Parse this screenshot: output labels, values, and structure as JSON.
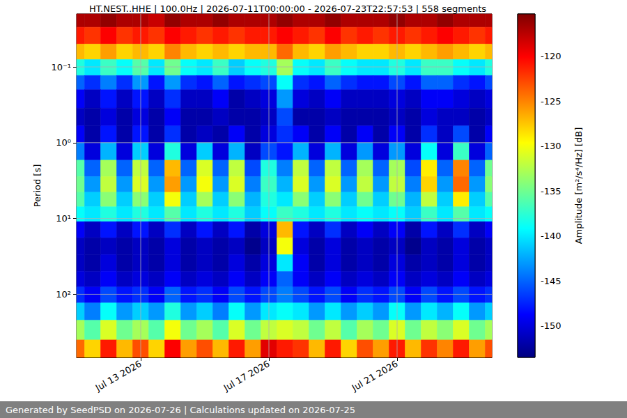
{
  "chart_data": {
    "type": "heatmap",
    "title": "HT.NEST..HHE | 100.0Hz | 2026-07-11T00:00:00 - 2026-07-23T22:57:53 | 558 segments",
    "footer": "Generated by SeedPSD on 2026-07-26 | Calculations updated on 2026-07-25",
    "y_label": "Period [s]",
    "colorbar_label": "Amplitude [m²/s⁴/Hz] [dB]",
    "log": "y",
    "grid": true,
    "xlim": [
      "2026-07-11T00:00:00",
      "2026-07-23T22:57:53"
    ],
    "xticks": [
      {
        "value": "2026-07-13T00:00:00",
        "label": "Jul 13 2026"
      },
      {
        "value": "2026-07-17T00:00:00",
        "label": "Jul 17 2026"
      },
      {
        "value": "2026-07-21T00:00:00",
        "label": "Jul 21 2026"
      }
    ],
    "ylim": [
      0.02,
      680
    ],
    "yticks": [
      {
        "value": 0.1,
        "label": "10⁻¹"
      },
      {
        "value": 1,
        "label": "10⁰"
      },
      {
        "value": 10,
        "label": "10¹"
      },
      {
        "value": 100,
        "label": "10²"
      }
    ],
    "colorbar_range": [
      -153.5,
      -115.3
    ],
    "colorbar_ticks": [
      -150,
      -145,
      -140,
      -135,
      -130,
      -125,
      -120
    ],
    "time_edges": [
      "2026-07-11T00:00:00",
      "2026-07-11T06:00:00",
      "2026-07-11T18:00:00",
      "2026-07-12T06:00:00",
      "2026-07-12T18:00:00",
      "2026-07-13T06:00:00",
      "2026-07-13T18:00:00",
      "2026-07-14T06:00:00",
      "2026-07-14T18:00:00",
      "2026-07-15T06:00:00",
      "2026-07-15T18:00:00",
      "2026-07-16T06:00:00",
      "2026-07-16T18:00:00",
      "2026-07-17T06:00:00",
      "2026-07-17T18:00:00",
      "2026-07-18T06:00:00",
      "2026-07-18T18:00:00",
      "2026-07-19T06:00:00",
      "2026-07-19T18:00:00",
      "2026-07-20T06:00:00",
      "2026-07-20T18:00:00",
      "2026-07-21T06:00:00",
      "2026-07-21T18:00:00",
      "2026-07-22T06:00:00",
      "2026-07-22T18:00:00",
      "2026-07-23T06:00:00",
      "2026-07-23T18:00:00",
      "2026-07-23T22:57:53"
    ],
    "period_edges": [
      0.02,
      0.03,
      0.05,
      0.08,
      0.13,
      0.2,
      0.35,
      0.6,
      1,
      1.7,
      2.8,
      4.5,
      7,
      11,
      18,
      30,
      50,
      80,
      130,
      220,
      400,
      680
    ],
    "cells": [
      [
        -117,
        -117,
        -116,
        -117,
        -117,
        -118,
        -116,
        -117,
        -117,
        -116,
        -117,
        -117,
        -117,
        -116,
        -117,
        -117,
        -116,
        -117,
        -117,
        -117,
        -116,
        -117,
        -117,
        -116,
        -117,
        -117,
        -117
      ],
      [
        -121,
        -122,
        -120,
        -122,
        -121,
        -122,
        -120,
        -121,
        -122,
        -121,
        -122,
        -121,
        -121,
        -120,
        -121,
        -122,
        -120,
        -122,
        -121,
        -122,
        -121,
        -122,
        -121,
        -120,
        -121,
        -122,
        -121
      ],
      [
        -127,
        -128,
        -126,
        -128,
        -127,
        -128,
        -125,
        -127,
        -128,
        -127,
        -128,
        -127,
        -127,
        -124,
        -127,
        -128,
        -126,
        -127,
        -128,
        -128,
        -127,
        -128,
        -127,
        -126,
        -127,
        -128,
        -127
      ],
      [
        -138,
        -140,
        -137,
        -139,
        -136,
        -140,
        -135,
        -139,
        -140,
        -137,
        -141,
        -139,
        -138,
        -133,
        -139,
        -140,
        -137,
        -139,
        -140,
        -140,
        -138,
        -140,
        -137,
        -137,
        -139,
        -140,
        -138
      ],
      [
        -145,
        -147,
        -144,
        -147,
        -143,
        -148,
        -143,
        -147,
        -148,
        -145,
        -148,
        -147,
        -146,
        -139,
        -147,
        -148,
        -145,
        -147,
        -148,
        -148,
        -146,
        -148,
        -145,
        -145,
        -147,
        -148,
        -146
      ],
      [
        -149,
        -151,
        -148,
        -151,
        -148,
        -151,
        -147,
        -151,
        -151,
        -149,
        -152,
        -151,
        -150,
        -143,
        -150,
        -151,
        -149,
        -151,
        -151,
        -151,
        -150,
        -151,
        -149,
        -149,
        -150,
        -151,
        -150
      ],
      [
        -151,
        -152,
        -150,
        -152,
        -150,
        -152,
        -149,
        -152,
        -152,
        -151,
        -152,
        -152,
        -151,
        -146,
        -152,
        -152,
        -151,
        -152,
        -152,
        -152,
        -151,
        -152,
        -150,
        -151,
        -151,
        -152,
        -151
      ],
      [
        -149,
        -152,
        -148,
        -152,
        -148,
        -152,
        -147,
        -152,
        -151,
        -152,
        -149,
        -152,
        -150,
        -147,
        -149,
        -152,
        -149,
        -152,
        -149,
        -152,
        -149,
        -152,
        -147,
        -151,
        -146,
        -152,
        -149
      ],
      [
        -144,
        -150,
        -142,
        -150,
        -141,
        -150,
        -138,
        -150,
        -141,
        -150,
        -142,
        -151,
        -146,
        -148,
        -142,
        -150,
        -142,
        -150,
        -143,
        -150,
        -143,
        -150,
        -139,
        -150,
        -137,
        -150,
        -145
      ],
      [
        -136,
        -145,
        -133,
        -145,
        -132,
        -145,
        -127,
        -145,
        -131,
        -145,
        -132,
        -146,
        -138,
        -144,
        -132,
        -145,
        -132,
        -145,
        -133,
        -145,
        -133,
        -146,
        -129,
        -145,
        -125,
        -145,
        -135
      ],
      [
        -135,
        -143,
        -132,
        -143,
        -131,
        -143,
        -126,
        -143,
        -130,
        -143,
        -131,
        -144,
        -137,
        -142,
        -131,
        -143,
        -131,
        -143,
        -132,
        -143,
        -132,
        -144,
        -128,
        -143,
        -124,
        -143,
        -134
      ],
      [
        -136,
        -141,
        -134,
        -141,
        -134,
        -141,
        -130,
        -141,
        -133,
        -141,
        -134,
        -142,
        -138,
        -140,
        -134,
        -141,
        -134,
        -141,
        -135,
        -141,
        -135,
        -142,
        -132,
        -141,
        -129,
        -141,
        -136
      ],
      [
        -139,
        -140,
        -138,
        -140,
        -138,
        -140,
        -136,
        -140,
        -138,
        -140,
        -138,
        -141,
        -139,
        -137,
        -138,
        -140,
        -138,
        -140,
        -139,
        -140,
        -139,
        -141,
        -137,
        -140,
        -136,
        -140,
        -139
      ],
      [
        -149,
        -151,
        -148,
        -151,
        -148,
        -151,
        -147,
        -151,
        -148,
        -151,
        -148,
        -152,
        -150,
        -127,
        -148,
        -151,
        -147,
        -151,
        -149,
        -151,
        -149,
        -152,
        -148,
        -151,
        -147,
        -151,
        -149
      ],
      [
        -151,
        -152,
        -151,
        -152,
        -151,
        -152,
        -150,
        -152,
        -151,
        -152,
        -151,
        -153,
        -151,
        -130,
        -150,
        -152,
        -150,
        -152,
        -151,
        -152,
        -151,
        -153,
        -151,
        -152,
        -150,
        -152,
        -151
      ],
      [
        -151,
        -152,
        -150,
        -152,
        -151,
        -152,
        -150,
        -152,
        -151,
        -152,
        -150,
        -152,
        -150,
        -140,
        -149,
        -152,
        -150,
        -152,
        -151,
        -152,
        -150,
        -152,
        -151,
        -152,
        -150,
        -152,
        -151
      ],
      [
        -150,
        -151,
        -149,
        -151,
        -150,
        -151,
        -149,
        -151,
        -150,
        -151,
        -149,
        -151,
        -149,
        -145,
        -149,
        -151,
        -149,
        -151,
        -150,
        -151,
        -149,
        -151,
        -150,
        -151,
        -149,
        -151,
        -150
      ],
      [
        -147,
        -149,
        -146,
        -148,
        -147,
        -149,
        -145,
        -148,
        -147,
        -149,
        -146,
        -148,
        -146,
        -144,
        -146,
        -148,
        -146,
        -149,
        -147,
        -148,
        -146,
        -149,
        -146,
        -148,
        -146,
        -148,
        -147
      ],
      [
        -141,
        -144,
        -139,
        -143,
        -141,
        -143,
        -138,
        -143,
        -141,
        -144,
        -139,
        -143,
        -140,
        -139,
        -140,
        -143,
        -140,
        -143,
        -141,
        -143,
        -139,
        -143,
        -140,
        -142,
        -139,
        -143,
        -141
      ],
      [
        -133,
        -136,
        -131,
        -135,
        -133,
        -136,
        -130,
        -135,
        -133,
        -136,
        -131,
        -135,
        -132,
        -131,
        -132,
        -135,
        -132,
        -136,
        -133,
        -135,
        -131,
        -135,
        -132,
        -134,
        -131,
        -135,
        -133
      ],
      [
        -124,
        -128,
        -121,
        -127,
        -123,
        -128,
        -120,
        -126,
        -123,
        -127,
        -121,
        -126,
        -119,
        -121,
        -122,
        -127,
        -121,
        -128,
        -123,
        -126,
        -121,
        -127,
        -122,
        -125,
        -121,
        -126,
        -123
      ]
    ]
  }
}
